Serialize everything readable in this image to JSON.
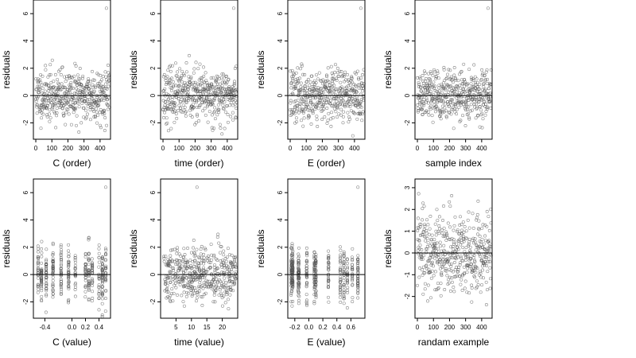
{
  "chart_data": [
    {
      "type": "scatter",
      "xlabel": "C (order)",
      "ylabel": "residuals",
      "xlim": [
        -15,
        465
      ],
      "ylim": [
        -3.2,
        7.0
      ],
      "xticks": [
        0,
        100,
        200,
        300,
        400
      ],
      "yticks": [
        -2,
        0,
        2,
        4,
        6
      ],
      "hline": 0,
      "pattern": "index",
      "seed": 11,
      "n": 460
    },
    {
      "type": "scatter",
      "xlabel": "time (order)",
      "ylabel": "residuals",
      "xlim": [
        -15,
        465
      ],
      "ylim": [
        -3.2,
        7.0
      ],
      "xticks": [
        0,
        100,
        200,
        300,
        400
      ],
      "yticks": [
        -2,
        0,
        2,
        4,
        6
      ],
      "hline": 0,
      "pattern": "index",
      "seed": 23,
      "n": 460
    },
    {
      "type": "scatter",
      "xlabel": "E (order)",
      "ylabel": "residuals",
      "xlim": [
        -15,
        465
      ],
      "ylim": [
        -3.2,
        7.0
      ],
      "xticks": [
        0,
        100,
        200,
        300,
        400
      ],
      "yticks": [
        -2,
        0,
        2,
        4,
        6
      ],
      "hline": 0,
      "pattern": "index",
      "seed": 37,
      "n": 460
    },
    {
      "type": "scatter",
      "xlabel": "sample index",
      "ylabel": "residuals",
      "xlim": [
        -15,
        465
      ],
      "ylim": [
        -3.2,
        7.0
      ],
      "xticks": [
        0,
        100,
        200,
        300,
        400
      ],
      "yticks": [
        -2,
        0,
        2,
        4,
        6
      ],
      "hline": 0,
      "pattern": "index",
      "seed": 51,
      "n": 460
    },
    {
      "type": "scatter",
      "xlabel": "C (value)",
      "ylabel": "residuals",
      "xlim": [
        -0.57,
        0.57
      ],
      "ylim": [
        -3.2,
        7.0
      ],
      "xticks": [
        -0.4,
        0.0,
        0.2,
        0.4
      ],
      "xticklabels": [
        "-0.4",
        "0.0",
        "0.2",
        "0.4"
      ],
      "yticks": [
        -2,
        0,
        2,
        4,
        6
      ],
      "hline": 0,
      "pattern": "clusters",
      "seed": 67,
      "clusters": [
        -0.5,
        -0.45,
        -0.38,
        -0.28,
        -0.16,
        -0.05,
        0.05,
        0.2,
        0.25,
        0.3,
        0.4,
        0.45,
        0.5
      ]
    },
    {
      "type": "scatter",
      "xlabel": "time (value)",
      "ylabel": "residuals",
      "xlim": [
        0,
        25
      ],
      "ylim": [
        -3.2,
        7.0
      ],
      "xticks": [
        5,
        10,
        15,
        20
      ],
      "yticks": [
        -2,
        0,
        2,
        4,
        6
      ],
      "hline": 0,
      "pattern": "uniform",
      "seed": 79,
      "n": 460,
      "xmin": 1,
      "xmax": 24.5
    },
    {
      "type": "scatter",
      "xlabel": "E (value)",
      "ylabel": "residuals",
      "xlim": [
        -0.3,
        0.8
      ],
      "ylim": [
        -3.2,
        7.0
      ],
      "xticks": [
        -0.2,
        0.0,
        0.2,
        0.4,
        0.6
      ],
      "xticklabels": [
        "-0.2",
        "0.0",
        "0.2",
        "0.4",
        "0.6"
      ],
      "yticks": [
        -2,
        0,
        2,
        4,
        6
      ],
      "hline": 0,
      "pattern": "clusters",
      "seed": 97,
      "clusters": [
        -0.25,
        -0.24,
        -0.23,
        -0.15,
        -0.14,
        -0.03,
        0.08,
        0.1,
        0.28,
        0.45,
        0.5,
        0.55,
        0.62,
        0.7
      ]
    },
    {
      "type": "scatter",
      "xlabel": "randam example",
      "ylabel": "residuals",
      "xlim": [
        -15,
        465
      ],
      "ylim": [
        -3.0,
        3.4
      ],
      "xticks": [
        0,
        100,
        200,
        300,
        400
      ],
      "yticks": [
        -2,
        -1,
        0,
        1,
        2,
        3
      ],
      "hline": 0,
      "pattern": "index",
      "seed": 113,
      "n": 460,
      "noOutlier": true
    }
  ]
}
